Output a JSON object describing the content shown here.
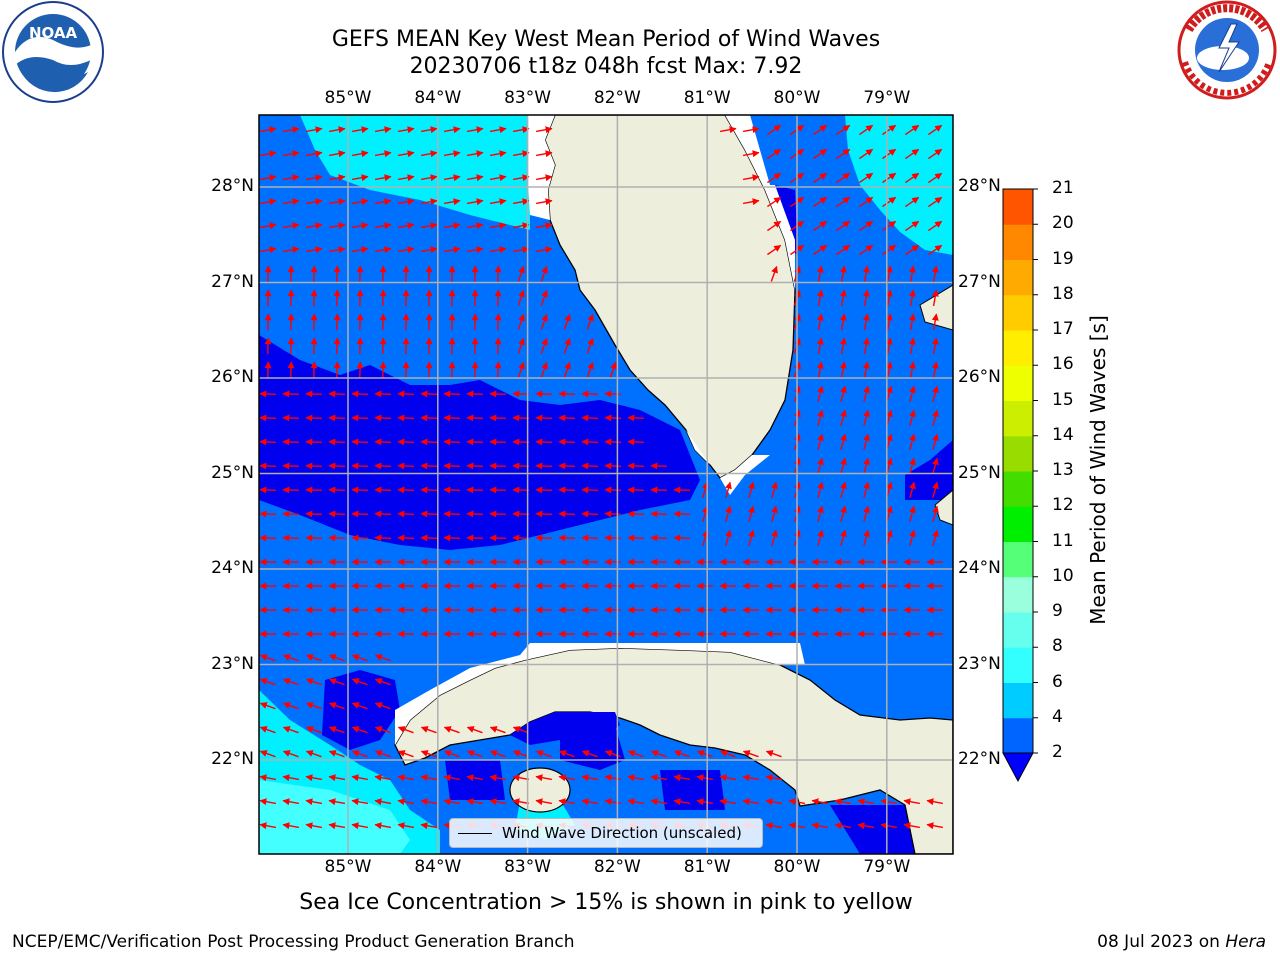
{
  "title_line1": "GEFS MEAN Key West Mean Period of Wind Waves",
  "title_line2": "20230706 t18z 048h fcst   Max: 7.92",
  "lon_labels": [
    "85°W",
    "84°W",
    "83°W",
    "82°W",
    "81°W",
    "80°W",
    "79°W"
  ],
  "lat_labels": [
    "28°N",
    "27°N",
    "26°N",
    "25°N",
    "24°N",
    "23°N",
    "22°N"
  ],
  "colorbar": {
    "title": "Mean Period of Wind Waves [s]",
    "labels": [
      "2",
      "4",
      "6",
      "8",
      "9",
      "10",
      "11",
      "12",
      "13",
      "14",
      "15",
      "16",
      "17",
      "18",
      "19",
      "20",
      "21"
    ],
    "colors": [
      "#0064ff",
      "#00ccff",
      "#33ffff",
      "#66ffee",
      "#99ffdd",
      "#55ff77",
      "#00ee00",
      "#44dd00",
      "#99dd00",
      "#ccee00",
      "#eeff00",
      "#ffee00",
      "#ffcc00",
      "#ffaa00",
      "#ff8800",
      "#ff5500",
      "#ff2200",
      "#ff0000"
    ],
    "extend_color": "#0000ff"
  },
  "legend": {
    "label": "Wind Wave Direction (unscaled)"
  },
  "sea_ice_note": "Sea Ice Concentration > 15% is shown in pink to yellow",
  "footer_left": "NCEP/EMC/Verification Post Processing Product Generation Branch",
  "footer_right_date": "08 Jul 2023 on ",
  "footer_right_host": "Hera",
  "logos": {
    "left": "NOAA",
    "right": "NATIONAL WEATHER SERVICE"
  },
  "map_colors": {
    "deep_blue": "#0000ee",
    "mid_blue": "#0070ff",
    "cyan": "#00f0ff",
    "light_cyan": "#44ffff",
    "land": "#eeeedd",
    "arrow": "#ff0000",
    "grid": "#b0b0b0"
  }
}
